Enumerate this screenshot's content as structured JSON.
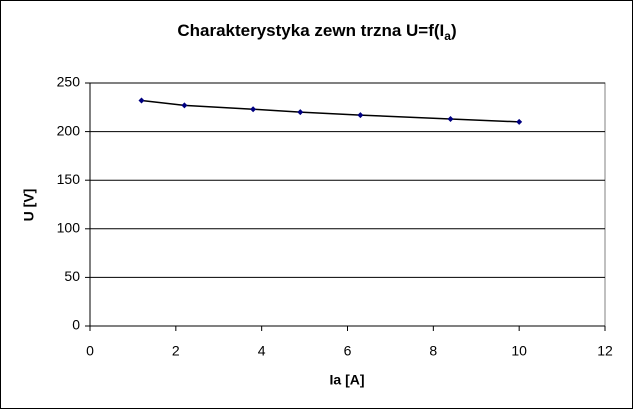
{
  "chart_data": {
    "type": "scatter-line",
    "title": "Charakterystyka zewn  trzna U=f(I",
    "title_subscript": "a",
    "title_end": ")",
    "x_label": "Ia [A]",
    "y_label": "U [V]",
    "x": [
      1.2,
      2.2,
      3.8,
      4.9,
      6.3,
      8.4,
      10
    ],
    "values": [
      232,
      227,
      223,
      220,
      217,
      213,
      210
    ],
    "line_color": "#000000",
    "marker_color": "#000080",
    "xlim": [
      0,
      12
    ],
    "xticks": [
      0,
      2,
      4,
      6,
      8,
      10,
      12
    ],
    "ylim": [
      0,
      250
    ],
    "yticks": [
      0,
      50,
      100,
      150,
      200,
      250
    ],
    "grid": true
  }
}
